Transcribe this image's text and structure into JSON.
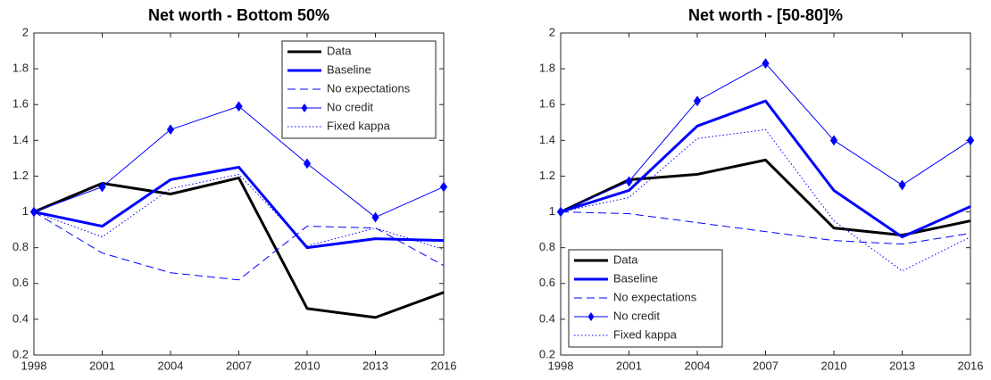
{
  "chart_data": [
    {
      "type": "line",
      "title": "Net worth - Bottom 50%",
      "x": [
        1998,
        2001,
        2004,
        2007,
        2010,
        2013,
        2016
      ],
      "xlim": [
        1998,
        2016
      ],
      "xticks": [
        1998,
        2001,
        2004,
        2007,
        2010,
        2013,
        2016
      ],
      "ylim": [
        0.2,
        2
      ],
      "yticks": [
        0.2,
        0.4,
        0.6,
        0.8,
        1,
        1.2,
        1.4,
        1.6,
        1.8,
        2
      ],
      "grid": false,
      "legend": "upper right",
      "series": [
        {
          "name": "Data",
          "color": "#000000",
          "linewidth": 3,
          "linestyle": "solid",
          "marker": "none",
          "values": [
            1.0,
            1.16,
            1.1,
            1.19,
            0.46,
            0.41,
            0.55
          ]
        },
        {
          "name": "Baseline",
          "color": "#0000ff",
          "linewidth": 3,
          "linestyle": "solid",
          "marker": "none",
          "values": [
            1.0,
            0.92,
            1.18,
            1.25,
            0.8,
            0.85,
            0.84
          ]
        },
        {
          "name": "No expectations",
          "color": "#0000ff",
          "linewidth": 1,
          "linestyle": "dashed",
          "marker": "none",
          "values": [
            1.0,
            0.77,
            0.66,
            0.62,
            0.92,
            0.91,
            0.7
          ]
        },
        {
          "name": "No credit",
          "color": "#0000ff",
          "linewidth": 1,
          "linestyle": "solid",
          "marker": "diamond",
          "values": [
            1.0,
            1.14,
            1.46,
            1.59,
            1.27,
            0.97,
            1.14
          ]
        },
        {
          "name": "Fixed kappa",
          "color": "#0000ff",
          "linewidth": 1,
          "linestyle": "dotted",
          "marker": "none",
          "values": [
            1.0,
            0.86,
            1.13,
            1.21,
            0.81,
            0.91,
            0.79
          ]
        }
      ]
    },
    {
      "type": "line",
      "title": "Net worth - [50-80]%",
      "x": [
        1998,
        2001,
        2004,
        2007,
        2010,
        2013,
        2016
      ],
      "xlim": [
        1998,
        2016
      ],
      "xticks": [
        1998,
        2001,
        2004,
        2007,
        2010,
        2013,
        2016
      ],
      "ylim": [
        0.2,
        2
      ],
      "yticks": [
        0.2,
        0.4,
        0.6,
        0.8,
        1,
        1.2,
        1.4,
        1.6,
        1.8,
        2
      ],
      "grid": false,
      "legend": "lower left",
      "series": [
        {
          "name": "Data",
          "color": "#000000",
          "linewidth": 3,
          "linestyle": "solid",
          "marker": "none",
          "values": [
            1.0,
            1.18,
            1.21,
            1.29,
            0.91,
            0.87,
            0.95
          ]
        },
        {
          "name": "Baseline",
          "color": "#0000ff",
          "linewidth": 3,
          "linestyle": "solid",
          "marker": "none",
          "values": [
            1.0,
            1.12,
            1.48,
            1.62,
            1.12,
            0.86,
            1.03
          ]
        },
        {
          "name": "No expectations",
          "color": "#0000ff",
          "linewidth": 1,
          "linestyle": "dashed",
          "marker": "none",
          "values": [
            1.0,
            0.99,
            0.94,
            0.89,
            0.84,
            0.82,
            0.88
          ]
        },
        {
          "name": "No credit",
          "color": "#0000ff",
          "linewidth": 1,
          "linestyle": "solid",
          "marker": "diamond",
          "values": [
            1.0,
            1.17,
            1.62,
            1.83,
            1.4,
            1.15,
            1.4
          ]
        },
        {
          "name": "Fixed kappa",
          "color": "#0000ff",
          "linewidth": 1,
          "linestyle": "dotted",
          "marker": "none",
          "values": [
            1.0,
            1.08,
            1.41,
            1.46,
            0.95,
            0.67,
            0.86
          ]
        }
      ]
    }
  ]
}
